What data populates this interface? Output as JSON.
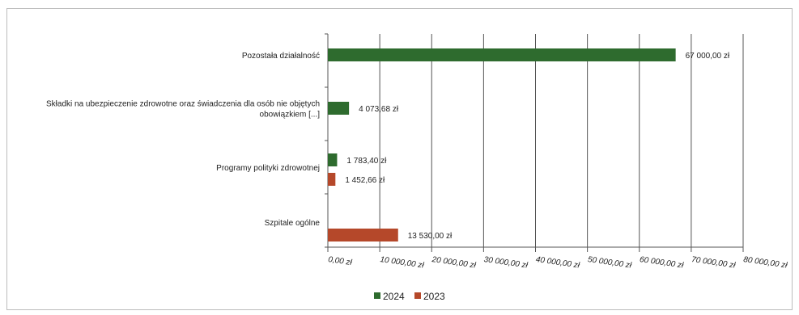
{
  "chart_data": {
    "type": "bar",
    "orientation": "horizontal",
    "categories": [
      "Pozostała działalność",
      [
        "Składki na ubezpieczenie zdrowotne oraz świadczenia dla osób nie objętych",
        "obowiązkiem [...]"
      ],
      "Programy polityki zdrowotnej",
      "Szpitale ogólne"
    ],
    "series": [
      {
        "name": "2024",
        "color": "#2e6b2e",
        "values": [
          67000.0,
          4073.68,
          1783.4,
          null
        ],
        "labels": [
          "67 000,00 zł",
          "4 073,68 zł",
          "1 783,40 zł",
          ""
        ]
      },
      {
        "name": "2023",
        "color": "#b5482a",
        "values": [
          null,
          null,
          1452.66,
          13530.0
        ],
        "labels": [
          "",
          "",
          "1 452,66 zł",
          "13 530,00 zł"
        ]
      }
    ],
    "xlim": [
      0,
      80000
    ],
    "x_ticks": [
      0,
      10000,
      20000,
      30000,
      40000,
      50000,
      60000,
      70000,
      80000
    ],
    "x_tick_labels": [
      "0,00 zł",
      "10 000,00 zł",
      "20 000,00 zł",
      "30 000,00 zł",
      "40 000,00 zł",
      "50 000,00 zł",
      "60 000,00 zł",
      "70 000,00 zł",
      "80 000,00 zł"
    ],
    "grid": true,
    "legend_position": "bottom",
    "title": "",
    "xlabel": "",
    "ylabel": ""
  }
}
